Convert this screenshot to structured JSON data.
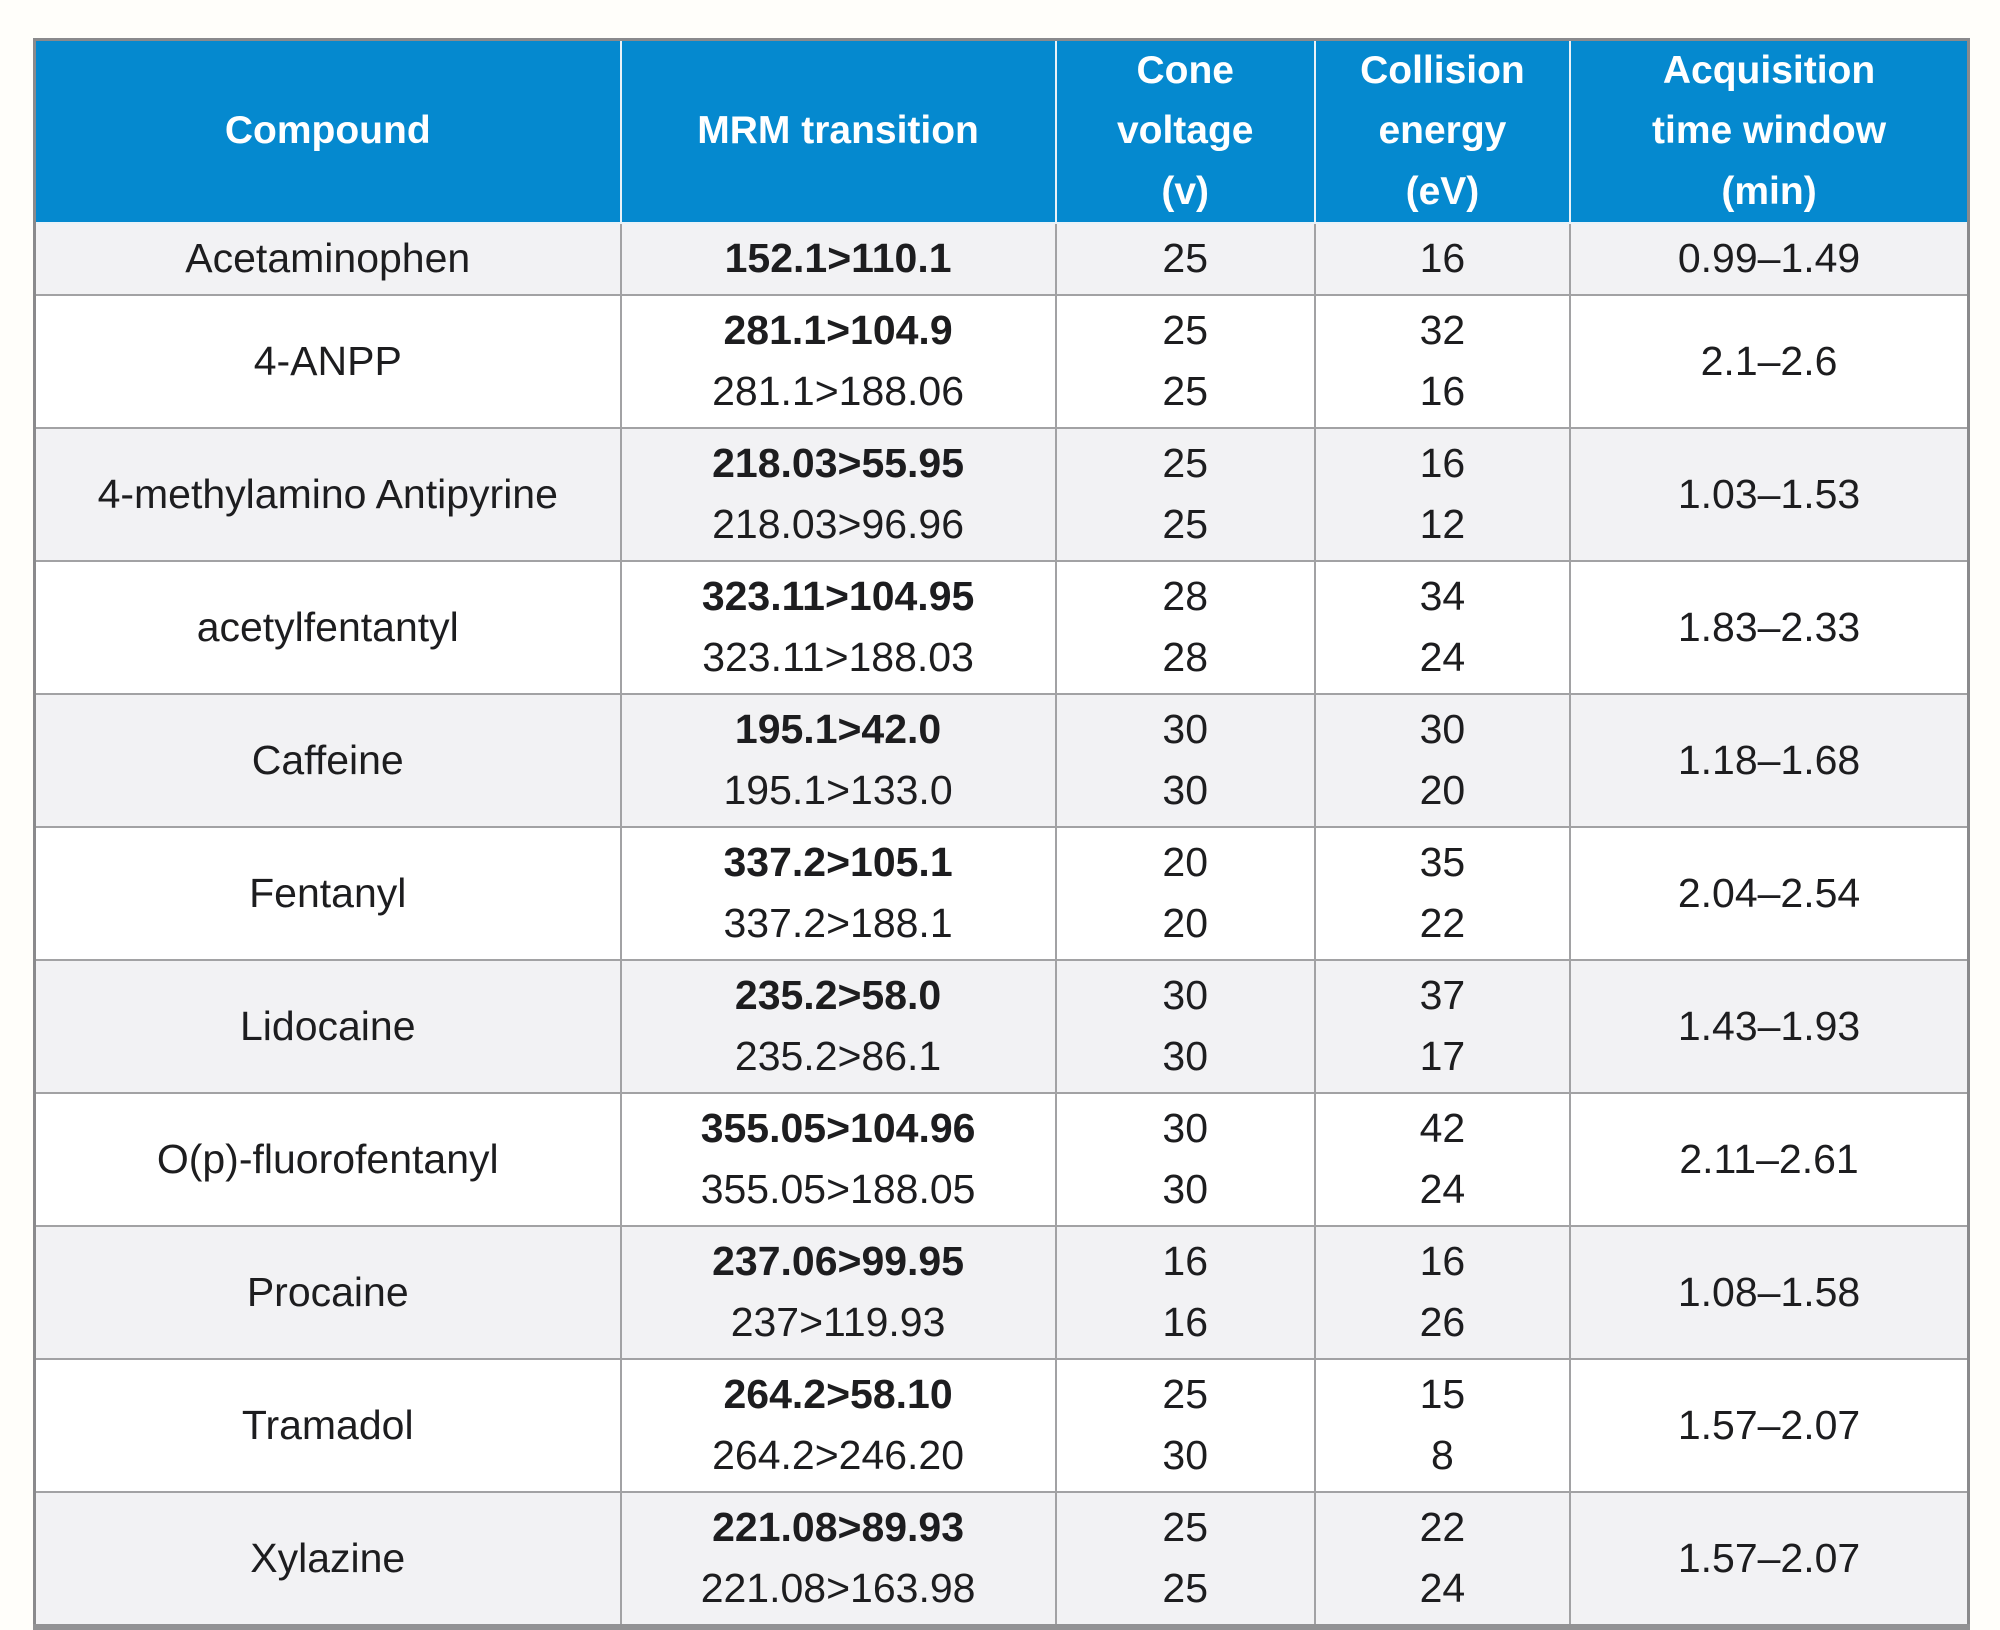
{
  "colors": {
    "header_bg": "#0589cf",
    "header_text": "#ffffff",
    "row_alt_bg": "#f2f2f4",
    "row_bg": "#ffffff",
    "body_text": "#1d1d1f",
    "grid_border": "#a2a2a4"
  },
  "header_labels": {
    "compound": "Compound",
    "mrm": "MRM transition",
    "cone": "Cone\nvoltage\n(v)",
    "collision": "Collision\nenergy\n(eV)",
    "window": "Acquisition\ntime window\n(min)"
  },
  "chart_data": {
    "type": "table",
    "columns": [
      "Compound",
      "MRM transition",
      "Cone voltage (v)",
      "Collision energy (eV)",
      "Acquisition time window (min)"
    ],
    "rows": [
      {
        "compound": "Acetaminophen",
        "transitions": [
          "152.1>110.1"
        ],
        "cone_voltage": [
          "25"
        ],
        "collision_energy": [
          "16"
        ],
        "acquisition_window": "0.99–1.49"
      },
      {
        "compound": "4-ANPP",
        "transitions": [
          "281.1>104.9",
          "281.1>188.06"
        ],
        "cone_voltage": [
          "25",
          "25"
        ],
        "collision_energy": [
          "32",
          "16"
        ],
        "acquisition_window": "2.1–2.6"
      },
      {
        "compound": "4-methylamino Antipyrine",
        "transitions": [
          "218.03>55.95",
          "218.03>96.96"
        ],
        "cone_voltage": [
          "25",
          "25"
        ],
        "collision_energy": [
          "16",
          "12"
        ],
        "acquisition_window": "1.03–1.53"
      },
      {
        "compound": "acetylfentantyl",
        "transitions": [
          "323.11>104.95",
          "323.11>188.03"
        ],
        "cone_voltage": [
          "28",
          "28"
        ],
        "collision_energy": [
          "34",
          "24"
        ],
        "acquisition_window": "1.83–2.33"
      },
      {
        "compound": "Caffeine",
        "transitions": [
          "195.1>42.0",
          "195.1>133.0"
        ],
        "cone_voltage": [
          "30",
          "30"
        ],
        "collision_energy": [
          "30",
          "20"
        ],
        "acquisition_window": "1.18–1.68"
      },
      {
        "compound": "Fentanyl",
        "transitions": [
          "337.2>105.1",
          "337.2>188.1"
        ],
        "cone_voltage": [
          "20",
          "20"
        ],
        "collision_energy": [
          "35",
          "22"
        ],
        "acquisition_window": "2.04–2.54"
      },
      {
        "compound": "Lidocaine",
        "transitions": [
          "235.2>58.0",
          "235.2>86.1"
        ],
        "cone_voltage": [
          "30",
          "30"
        ],
        "collision_energy": [
          "37",
          "17"
        ],
        "acquisition_window": "1.43–1.93"
      },
      {
        "compound": "O(p)-fluorofentanyl",
        "transitions": [
          "355.05>104.96",
          "355.05>188.05"
        ],
        "cone_voltage": [
          "30",
          "30"
        ],
        "collision_energy": [
          "42",
          "24"
        ],
        "acquisition_window": "2.11–2.61"
      },
      {
        "compound": "Procaine",
        "transitions": [
          "237.06>99.95",
          "237>119.93"
        ],
        "cone_voltage": [
          "16",
          "16"
        ],
        "collision_energy": [
          "16",
          "26"
        ],
        "acquisition_window": "1.08–1.58"
      },
      {
        "compound": "Tramadol",
        "transitions": [
          "264.2>58.10",
          "264.2>246.20"
        ],
        "cone_voltage": [
          "25",
          "30"
        ],
        "collision_energy": [
          "15",
          "8"
        ],
        "acquisition_window": "1.57–2.07"
      },
      {
        "compound": "Xylazine",
        "transitions": [
          "221.08>89.93",
          "221.08>163.98"
        ],
        "cone_voltage": [
          "25",
          "25"
        ],
        "collision_energy": [
          "22",
          "24"
        ],
        "acquisition_window": "1.57–2.07"
      }
    ]
  }
}
